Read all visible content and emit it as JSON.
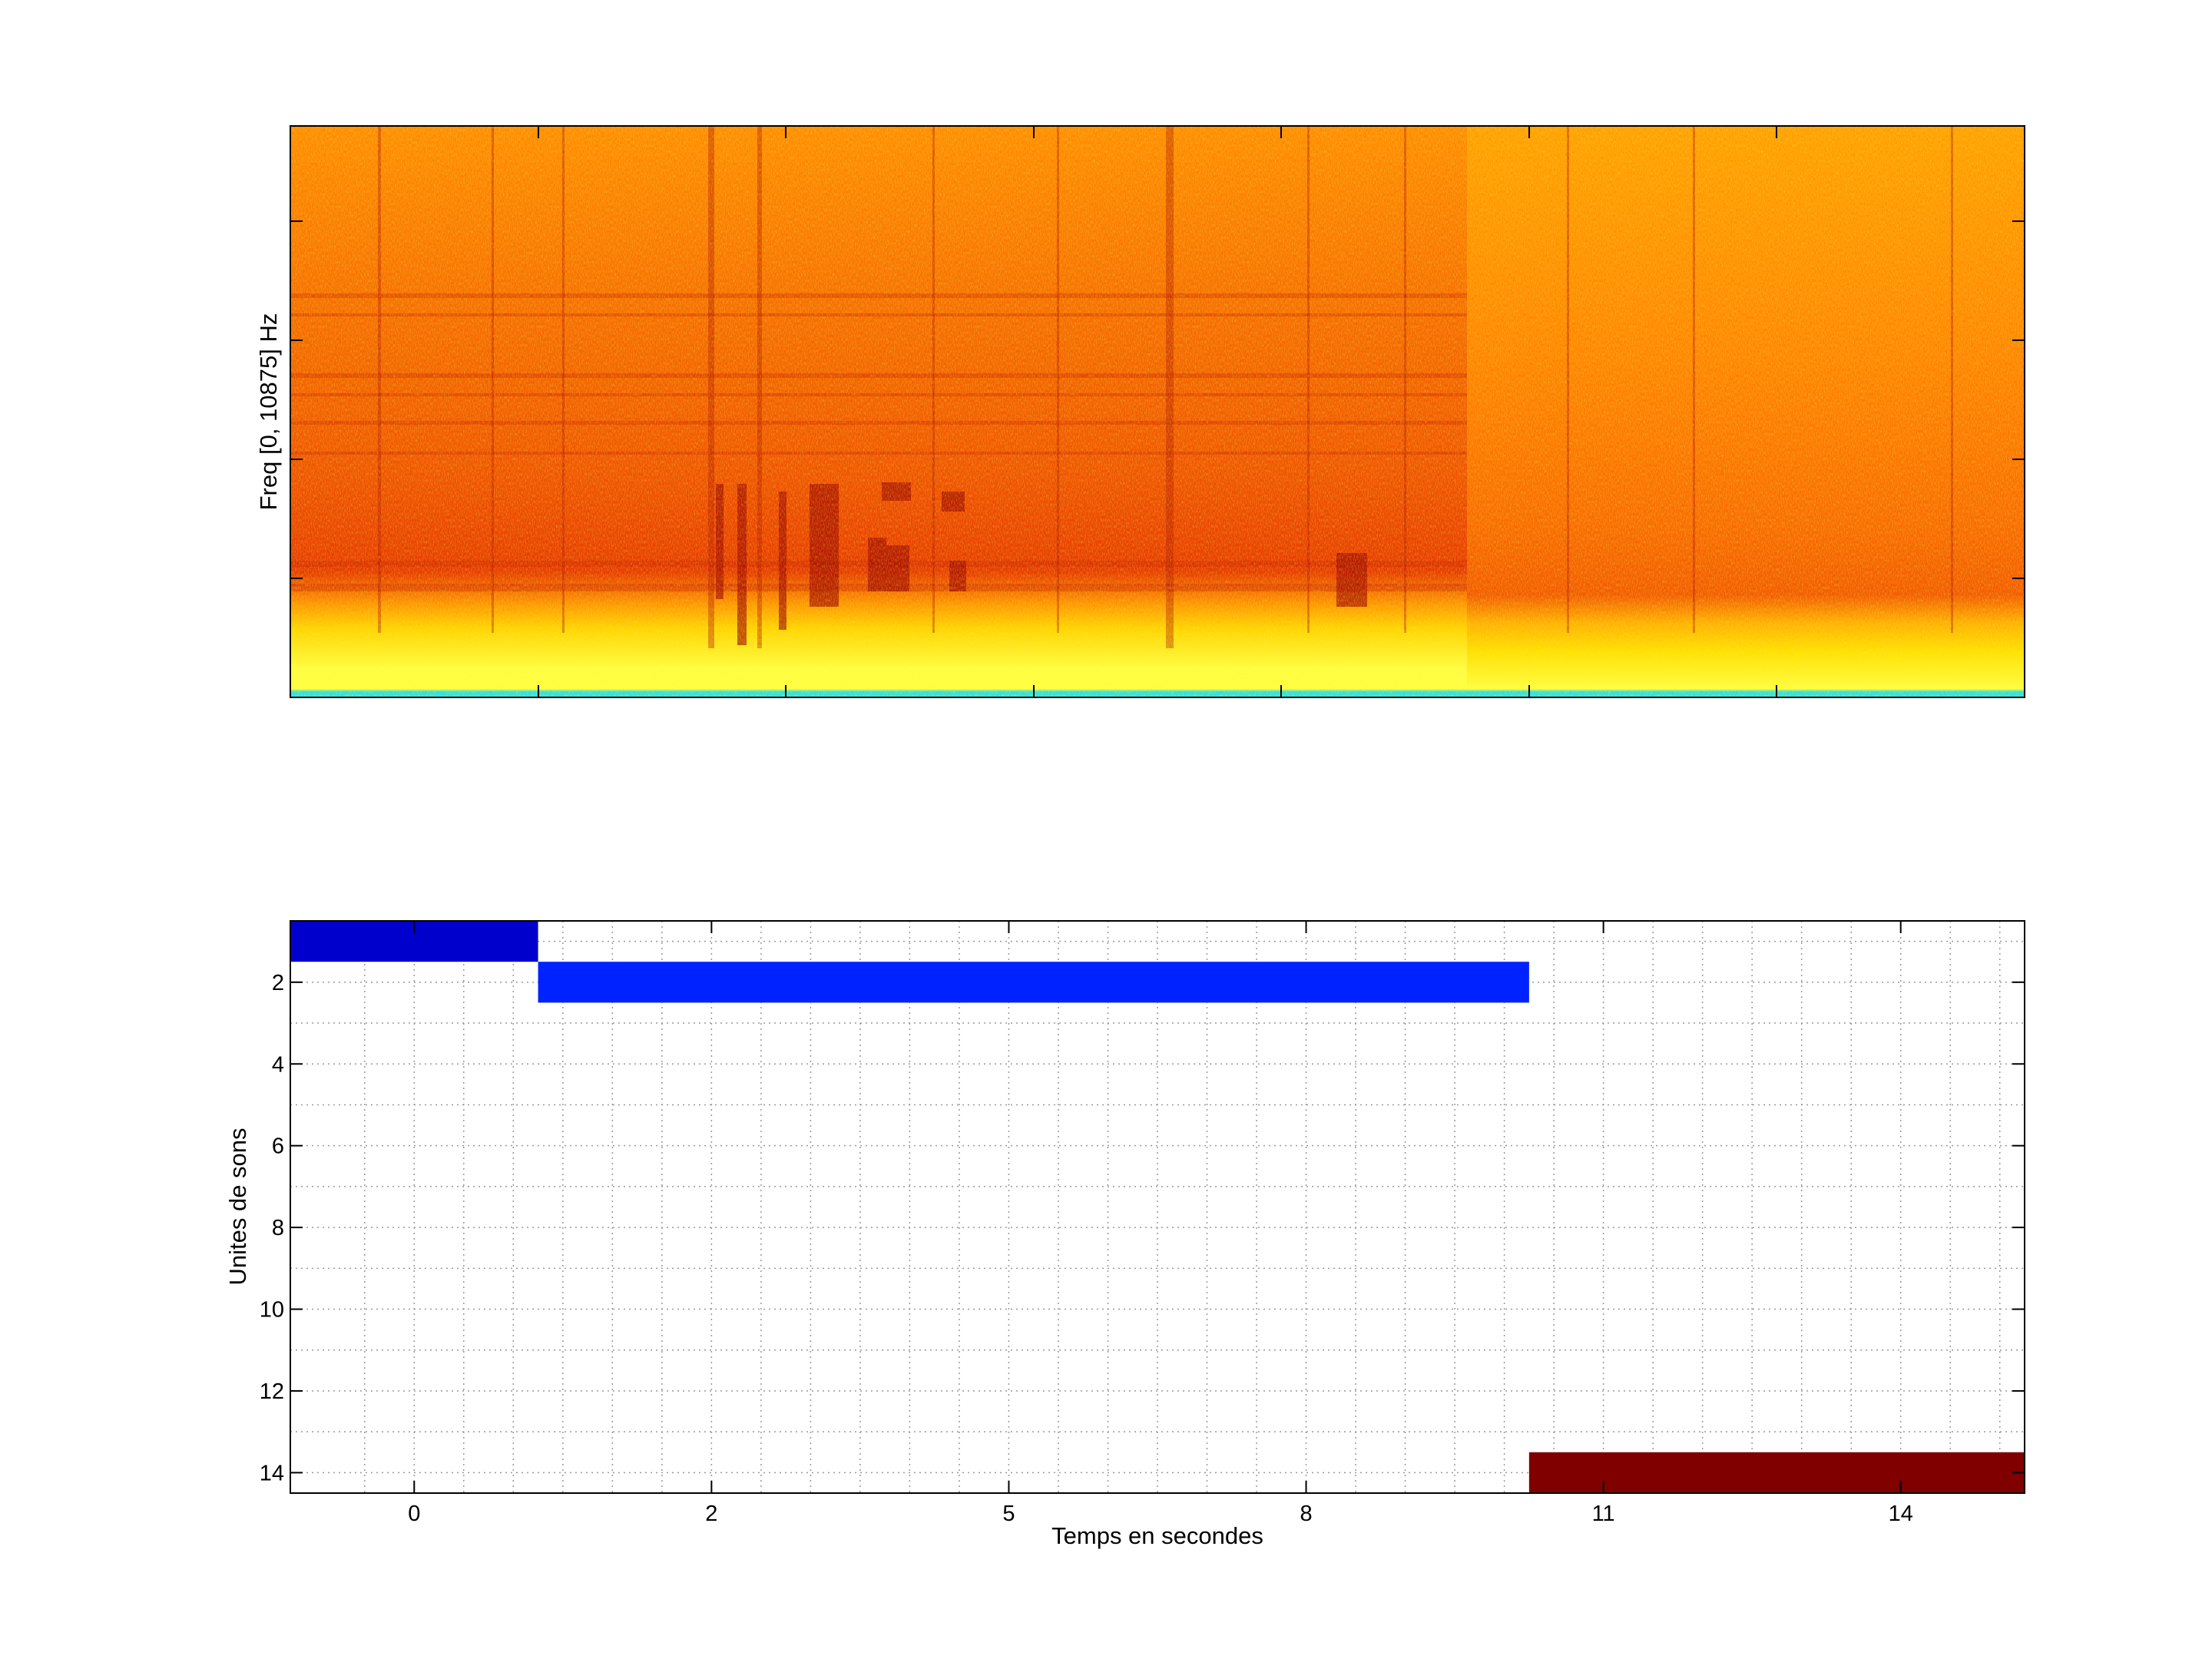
{
  "chart_data": [
    {
      "type": "heatmap",
      "title": "",
      "xlabel": "",
      "ylabel": "Freq [0, 10875] Hz",
      "y_range_hz": [
        0,
        10875
      ],
      "colormap": "hot-to-yellow (low energy red/dark, high energy yellow, cyan at lowest frequency band)",
      "colors": {
        "dark": "#b01000",
        "mid": "#ff6a00",
        "light": "#ffd400",
        "base": "#ffff40",
        "cyan": "#30e0e0"
      },
      "grid": false
    },
    {
      "type": "bar",
      "title": "",
      "xlabel": "Temps en secondes",
      "ylabel": "Unites de sons",
      "xtick_labels": [
        "0",
        "2",
        "5",
        "8",
        "11",
        "14"
      ],
      "ytick_labels": [
        "2",
        "4",
        "6",
        "8",
        "10",
        "12",
        "14"
      ],
      "xlim": [
        -1.25,
        16.25
      ],
      "ylim": [
        0.5,
        14.5
      ],
      "y_reversed": true,
      "grid": true,
      "segments": [
        {
          "unit": 1,
          "start": -1.25,
          "end": 1.25,
          "color": "#0000cc"
        },
        {
          "unit": 2,
          "start": 1.25,
          "end": 11.25,
          "color": "#0022ff"
        },
        {
          "unit": 14,
          "start": 11.25,
          "end": 16.25,
          "color": "#800000"
        }
      ]
    }
  ]
}
